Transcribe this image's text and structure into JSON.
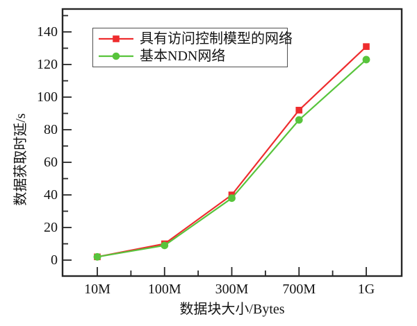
{
  "chart_data": {
    "type": "line",
    "title": "",
    "xlabel": "数据块大小/Bytes",
    "ylabel": "数据获取时延/s",
    "categories": [
      "10M",
      "100M",
      "300M",
      "700M",
      "1G"
    ],
    "series": [
      {
        "name": "具有访问控制模型的网络",
        "color": "#ee2c2e",
        "marker": "square",
        "values": [
          2,
          10,
          40,
          92,
          131
        ]
      },
      {
        "name": "基本NDN网络",
        "color": "#58c43c",
        "marker": "circle",
        "values": [
          2,
          9,
          38,
          86,
          123
        ]
      }
    ],
    "ylim": [
      0,
      150
    ],
    "yticks": [
      0,
      20,
      40,
      60,
      80,
      100,
      120,
      140
    ],
    "grid": false,
    "legend_position": "top-left-inside",
    "frame_color": "#262626"
  }
}
